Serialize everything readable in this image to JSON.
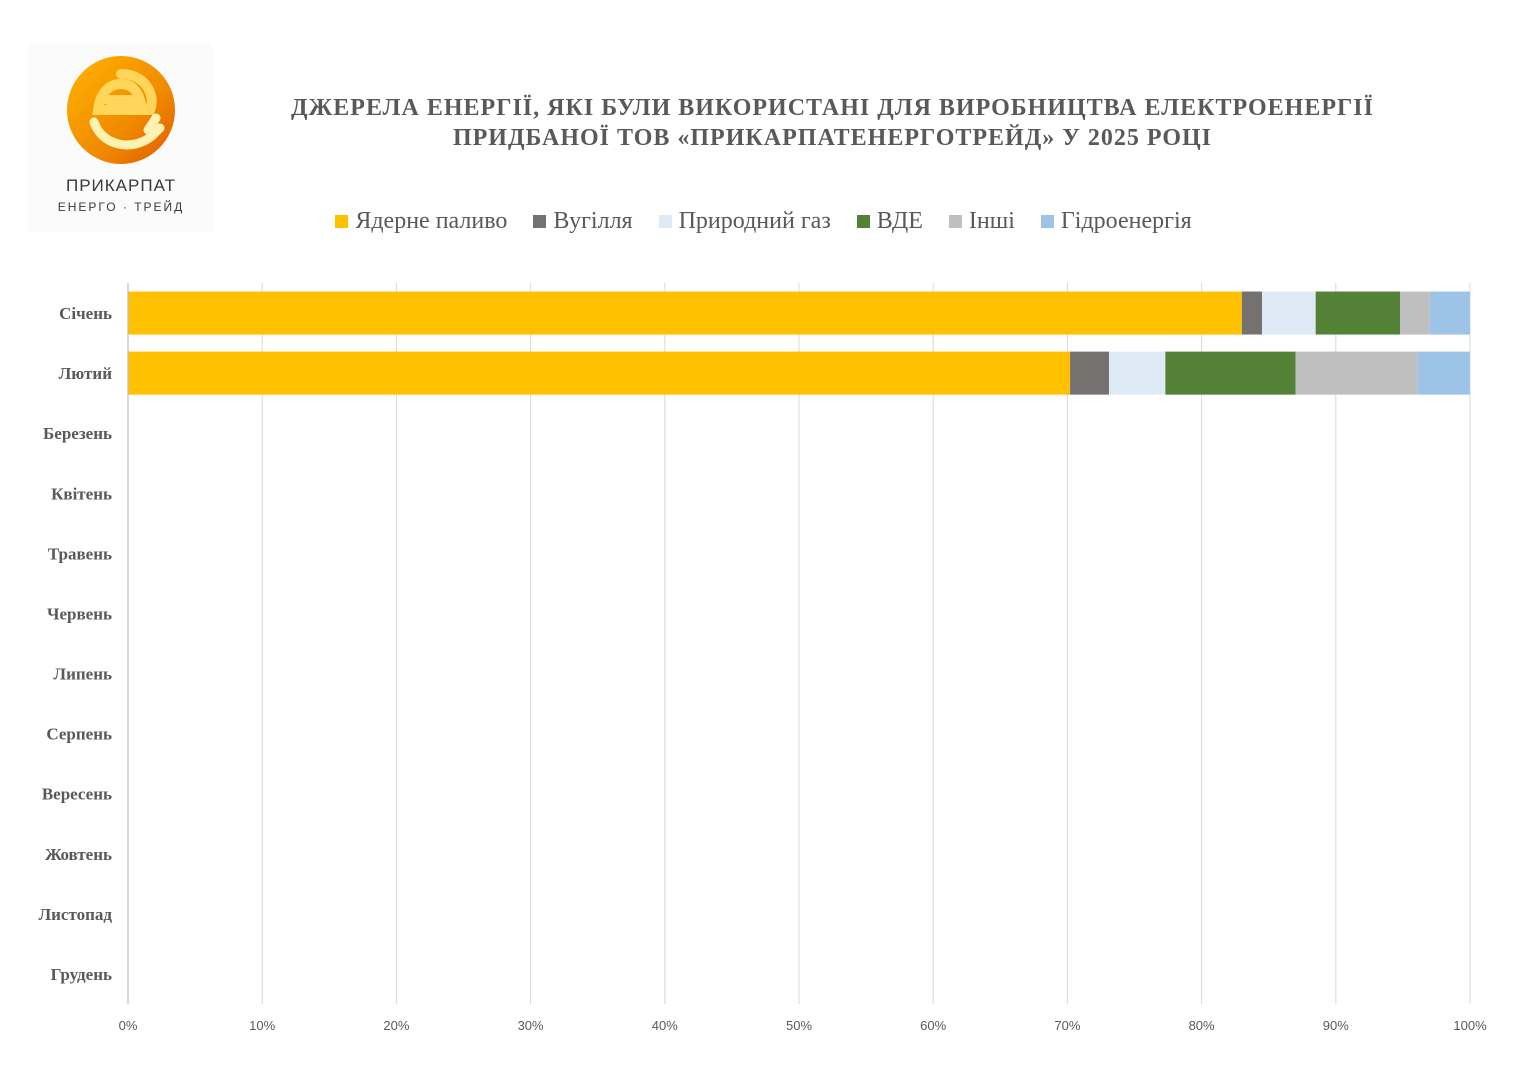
{
  "logo": {
    "line1": "ПРИКАРПАТ",
    "line2": "ЕНЕРГО · ТРЕЙД"
  },
  "chart_data": {
    "type": "bar",
    "orientation": "horizontal",
    "stacked": "percent",
    "title_lines": [
      "ДЖЕРЕЛА ЕНЕРГІЇ, ЯКІ БУЛИ ВИКОРИСТАНІ ДЛЯ ВИРОБНИЦТВА ЕЛЕКТРОЕНЕРГІЇ",
      "ПРИДБАНОЇ ТОВ «ПРИКАРПАТЕНЕРГОТРЕЙД» У 2025 РОЦІ"
    ],
    "categories": [
      "Січень",
      "Лютий",
      "Березень",
      "Квітень",
      "Травень",
      "Червень",
      "Липень",
      "Серпень",
      "Вересень",
      "Жовтень",
      "Листопад",
      "Грудень"
    ],
    "series": [
      {
        "name": "Ядерне паливо",
        "color": "#FFC000",
        "values": [
          83.0,
          70.2,
          null,
          null,
          null,
          null,
          null,
          null,
          null,
          null,
          null,
          null
        ]
      },
      {
        "name": "Вугілля",
        "color": "#767171",
        "values": [
          1.5,
          2.9,
          null,
          null,
          null,
          null,
          null,
          null,
          null,
          null,
          null,
          null
        ]
      },
      {
        "name": "Природний газ",
        "color": "#DEEBF7",
        "values": [
          4.0,
          4.2,
          null,
          null,
          null,
          null,
          null,
          null,
          null,
          null,
          null,
          null
        ]
      },
      {
        "name": "ВДЕ",
        "color": "#538135",
        "values": [
          6.3,
          9.7,
          null,
          null,
          null,
          null,
          null,
          null,
          null,
          null,
          null,
          null
        ]
      },
      {
        "name": "Інші",
        "color": "#BFBFBF",
        "values": [
          2.2,
          9.1,
          null,
          null,
          null,
          null,
          null,
          null,
          null,
          null,
          null,
          null
        ]
      },
      {
        "name": "Гідроенергія",
        "color": "#9DC3E6",
        "values": [
          3.0,
          3.9,
          null,
          null,
          null,
          null,
          null,
          null,
          null,
          null,
          null,
          null
        ]
      }
    ],
    "x_ticks": [
      "0%",
      "10%",
      "20%",
      "30%",
      "40%",
      "50%",
      "60%",
      "70%",
      "80%",
      "90%",
      "100%"
    ],
    "xlim": [
      0,
      100
    ],
    "grid": "vertical",
    "legend_position": "top"
  }
}
